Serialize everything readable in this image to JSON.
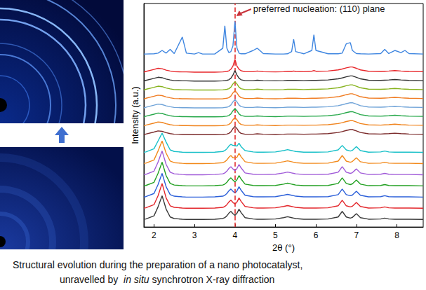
{
  "chart_data": {
    "type": "line",
    "xlabel": "2θ (°)",
    "ylabel": "Intensity (a.u.)",
    "xlim": [
      1.75,
      8.65
    ],
    "xticks": [
      2,
      3,
      4,
      5,
      6,
      7,
      8
    ],
    "ylim": [
      0,
      100
    ],
    "yticks": [],
    "tick_labels": "x",
    "grid": false,
    "annotations": [
      {
        "text": "preferred nucleation: (110) plane",
        "x": 4
      }
    ],
    "x": [
      1.75,
      1.8,
      2.0,
      2.1,
      2.2,
      2.3,
      2.4,
      2.5,
      2.7,
      2.8,
      3.0,
      3.1,
      3.2,
      3.5,
      3.7,
      3.75,
      3.8,
      3.85,
      3.9,
      3.95,
      4.0,
      4.05,
      4.1,
      4.15,
      4.25,
      4.45,
      4.55,
      4.7,
      5.0,
      5.2,
      5.3,
      5.4,
      5.45,
      5.5,
      5.7,
      5.9,
      5.95,
      6.0,
      6.3,
      6.55,
      6.65,
      6.75,
      6.85,
      6.9,
      7.0,
      7.1,
      7.3,
      7.6,
      7.7,
      7.8,
      7.95,
      8.1,
      8.2,
      8.3,
      8.65
    ],
    "series": [
      {
        "color": "#3a3a3a",
        "values": [
          3.5,
          3.6,
          5,
          9,
          14,
          8,
          4.5,
          3.8,
          3.5,
          3.4,
          3.4,
          3.4,
          3.4,
          3.5,
          3.8,
          4.2,
          5,
          6.2,
          7,
          6,
          5.2,
          6.2,
          8,
          6.5,
          4.2,
          3.6,
          3.5,
          3.5,
          3.6,
          4.2,
          4.6,
          4.2,
          4,
          3.8,
          3.5,
          3.5,
          3.5,
          3.5,
          3.6,
          4.5,
          7,
          4.5,
          4,
          4.3,
          6,
          4.2,
          3.5,
          3.6,
          4,
          3.6,
          3.5,
          3.5,
          3.5,
          3.5,
          3.4
        ]
      },
      {
        "color": "#e3262b",
        "values": [
          8.5,
          8.6,
          10,
          14,
          19.5,
          13,
          9.5,
          8.8,
          8.5,
          8.4,
          8.4,
          8.4,
          8.4,
          8.5,
          8.8,
          9.2,
          10,
          11.2,
          12,
          11,
          10.2,
          11.2,
          13,
          11.5,
          9.2,
          8.6,
          8.5,
          8.5,
          8.6,
          9.2,
          9.6,
          9.2,
          9,
          8.8,
          8.5,
          8.5,
          8.5,
          8.5,
          8.6,
          9.5,
          12,
          9.5,
          9,
          9.3,
          11,
          9.2,
          8.5,
          8.6,
          9,
          8.6,
          8.5,
          8.5,
          8.5,
          8.5,
          8.4
        ]
      },
      {
        "color": "#2b5fd9",
        "values": [
          13.5,
          13.6,
          15,
          19,
          24,
          18,
          14.5,
          13.8,
          13.5,
          13.4,
          13.4,
          13.4,
          13.4,
          13.5,
          13.8,
          14.2,
          15,
          16.2,
          17,
          16,
          15.2,
          16.2,
          18,
          16.5,
          14.2,
          13.6,
          13.5,
          13.5,
          13.6,
          14.2,
          14.6,
          14.2,
          14,
          13.8,
          13.5,
          13.5,
          13.5,
          13.5,
          13.6,
          14.5,
          17,
          14.5,
          14,
          14.3,
          16,
          14.2,
          13.5,
          13.6,
          14,
          13.6,
          13.5,
          13.5,
          13.5,
          13.5,
          13.4
        ]
      },
      {
        "color": "#22a022",
        "values": [
          18.5,
          18.6,
          20,
          24,
          29,
          23,
          19.5,
          18.8,
          18.5,
          18.4,
          18.4,
          18.4,
          18.4,
          18.5,
          18.8,
          19.2,
          20,
          21.2,
          22,
          21,
          20.2,
          21.2,
          23,
          21.5,
          19.2,
          18.6,
          18.5,
          18.5,
          18.6,
          19.2,
          19.6,
          19.2,
          19,
          18.8,
          18.5,
          18.5,
          18.5,
          18.5,
          18.6,
          19.5,
          22,
          19.5,
          19,
          19.3,
          21,
          19.2,
          18.5,
          18.6,
          19,
          18.6,
          18.5,
          18.5,
          18.5,
          18.5,
          18.4
        ]
      },
      {
        "color": "#a05ad8",
        "values": [
          23.5,
          23.6,
          25,
          29,
          34,
          28,
          24.5,
          23.8,
          23.5,
          23.4,
          23.4,
          23.4,
          23.4,
          23.5,
          23.8,
          24.2,
          25,
          26.2,
          27,
          26,
          25.2,
          26.2,
          28,
          26.5,
          24.2,
          23.6,
          23.5,
          23.5,
          23.6,
          24.2,
          24.6,
          24.2,
          24,
          23.8,
          23.5,
          23.5,
          23.5,
          23.5,
          23.6,
          24.5,
          27,
          24.5,
          24,
          24.3,
          26,
          24.2,
          23.5,
          23.6,
          24,
          23.6,
          23.5,
          23.5,
          23.5,
          23.5,
          23.4
        ]
      },
      {
        "color": "#f28a1c",
        "values": [
          28.5,
          28.6,
          30,
          34,
          38.5,
          33,
          29.5,
          28.8,
          28.5,
          28.4,
          28.4,
          28.4,
          28.4,
          28.5,
          28.8,
          29.2,
          30,
          31.2,
          32,
          31,
          31,
          31.2,
          33,
          31.5,
          29.2,
          28.6,
          28.5,
          28.5,
          28.6,
          29.2,
          29.6,
          29.2,
          29,
          28.8,
          28.5,
          28.5,
          28.5,
          28.5,
          28.6,
          29.5,
          32,
          29.5,
          29,
          29.3,
          31,
          29.2,
          28.5,
          28.6,
          29,
          28.6,
          28.5,
          28.5,
          28.5,
          28.5,
          28.4
        ]
      },
      {
        "color": "#18c0c8",
        "values": [
          33.5,
          33.6,
          35,
          38.5,
          42,
          38,
          34.5,
          33.8,
          33.5,
          33.4,
          33.4,
          33.4,
          33.4,
          33.5,
          33.8,
          34.2,
          35,
          36.2,
          37,
          36.5,
          36.5,
          36.2,
          37.5,
          36,
          34.2,
          33.6,
          33.5,
          33.5,
          33.6,
          34.2,
          34.6,
          34.2,
          34,
          33.8,
          33.5,
          33.5,
          33.5,
          33.5,
          33.6,
          34.5,
          36.5,
          34.5,
          34,
          34.3,
          36,
          34.2,
          33.5,
          33.6,
          34,
          33.6,
          33.5,
          33.5,
          33.5,
          33.5,
          33.4
        ]
      },
      {
        "color": "#7b2b2b",
        "values": [
          41.3,
          41.6,
          42.5,
          43,
          42.8,
          42.2,
          41.8,
          41.5,
          41.4,
          41.4,
          41.3,
          41.3,
          41.3,
          41.3,
          41.4,
          41.5,
          41.6,
          41.9,
          42.6,
          44,
          45,
          44,
          42.6,
          41.9,
          41.5,
          41.5,
          41.7,
          41.5,
          41.4,
          41.5,
          41.6,
          41.6,
          41.6,
          41.6,
          41.5,
          41.6,
          41.6,
          41.6,
          41.8,
          42.3,
          42.7,
          43.2,
          43.6,
          43.6,
          43,
          42.3,
          41.7,
          41.6,
          41.7,
          41.8,
          42,
          41.8,
          41.7,
          41.6,
          41.5
        ]
      },
      {
        "color": "#f0831c",
        "values": [
          45.3,
          45.6,
          46.5,
          47,
          46.8,
          46.2,
          45.8,
          45.5,
          45.4,
          45.4,
          45.3,
          45.3,
          45.3,
          45.3,
          45.4,
          45.5,
          45.6,
          45.9,
          46.6,
          48,
          49,
          48,
          46.6,
          45.9,
          45.5,
          45.5,
          45.7,
          45.5,
          45.4,
          45.5,
          45.6,
          45.6,
          45.6,
          45.6,
          45.5,
          45.6,
          45.6,
          45.6,
          45.8,
          46.3,
          46.7,
          47.2,
          47.6,
          47.6,
          47,
          46.3,
          45.7,
          45.6,
          45.7,
          45.8,
          46,
          45.8,
          45.7,
          45.6,
          45.5
        ]
      },
      {
        "color": "#27a84a",
        "values": [
          49.3,
          49.6,
          50.5,
          51,
          50.8,
          50.2,
          49.8,
          49.5,
          49.4,
          49.4,
          49.3,
          49.3,
          49.3,
          49.3,
          49.4,
          49.5,
          49.6,
          49.9,
          50.6,
          52,
          53,
          52,
          50.6,
          49.9,
          49.5,
          49.5,
          49.7,
          49.5,
          49.4,
          49.5,
          49.6,
          49.6,
          49.6,
          49.6,
          49.5,
          49.6,
          49.6,
          49.6,
          49.8,
          50.3,
          50.7,
          51.2,
          51.6,
          51.6,
          51,
          50.3,
          49.7,
          49.6,
          49.7,
          49.8,
          50,
          49.8,
          49.7,
          49.6,
          49.5
        ]
      },
      {
        "color": "#6fa3d8",
        "values": [
          53.3,
          53.6,
          54.5,
          55,
          54.8,
          54.2,
          53.8,
          53.5,
          53.4,
          53.4,
          53.3,
          53.3,
          53.3,
          53.3,
          53.4,
          53.5,
          53.6,
          53.9,
          54.6,
          56,
          57,
          56,
          54.6,
          53.9,
          53.5,
          53.5,
          53.7,
          53.5,
          53.4,
          53.5,
          53.6,
          53.6,
          53.6,
          53.6,
          53.5,
          53.6,
          53.6,
          53.6,
          53.8,
          54.3,
          54.7,
          55.2,
          55.6,
          55.6,
          55,
          54.3,
          53.7,
          53.6,
          53.7,
          53.8,
          54,
          53.8,
          53.7,
          53.6,
          53.5
        ]
      },
      {
        "color": "#f07c22",
        "values": [
          57.3,
          57.6,
          58.5,
          59,
          58.8,
          58.2,
          57.8,
          57.5,
          57.4,
          57.4,
          57.3,
          57.3,
          57.3,
          57.3,
          57.4,
          57.5,
          57.6,
          57.9,
          58.6,
          60,
          61,
          60,
          58.6,
          57.9,
          57.5,
          57.5,
          57.7,
          57.5,
          57.4,
          57.5,
          57.6,
          57.6,
          57.6,
          57.6,
          57.5,
          57.6,
          57.6,
          57.6,
          57.8,
          58.3,
          58.7,
          59.2,
          59.6,
          59.6,
          59,
          58.3,
          57.7,
          57.6,
          57.7,
          57.8,
          58,
          57.8,
          57.7,
          57.6,
          57.5
        ]
      },
      {
        "color": "#86b21c",
        "values": [
          61.3,
          61.6,
          62.5,
          63,
          62.8,
          62.2,
          61.8,
          61.5,
          61.4,
          61.4,
          61.3,
          61.3,
          61.3,
          61.3,
          61.4,
          61.5,
          61.6,
          61.9,
          62.6,
          64,
          65,
          64,
          62.6,
          61.9,
          61.5,
          61.5,
          61.7,
          61.5,
          61.4,
          61.5,
          61.6,
          61.6,
          61.6,
          61.6,
          61.5,
          61.6,
          61.6,
          61.6,
          61.8,
          62.3,
          62.7,
          63.2,
          63.6,
          63.6,
          63,
          62.3,
          61.7,
          61.6,
          61.7,
          61.8,
          62,
          61.8,
          61.7,
          61.6,
          61.5
        ]
      },
      {
        "color": "#333333",
        "values": [
          65.3,
          65.6,
          66.5,
          67,
          66.8,
          66.2,
          65.8,
          65.5,
          65.4,
          65.4,
          65.3,
          65.3,
          65.3,
          65.3,
          65.4,
          65.5,
          65.6,
          65.9,
          66.6,
          68,
          70,
          68,
          66.6,
          65.9,
          65.5,
          65.5,
          65.7,
          65.5,
          65.4,
          65.5,
          65.6,
          65.6,
          65.6,
          65.6,
          65.5,
          65.6,
          65.6,
          65.6,
          65.8,
          66.3,
          66.7,
          67.2,
          67.6,
          67.6,
          67,
          66.3,
          65.7,
          65.6,
          65.7,
          65.8,
          66,
          65.8,
          65.7,
          65.6,
          65.5
        ]
      },
      {
        "color": "#e8262a",
        "values": [
          69.3,
          69.6,
          70.5,
          71,
          70.8,
          70.2,
          69.8,
          69.5,
          69.4,
          69.4,
          69.3,
          69.3,
          69.3,
          69.3,
          69.4,
          69.5,
          69.6,
          69.9,
          70.6,
          72,
          75,
          72,
          70.6,
          69.9,
          69.5,
          69.5,
          69.8,
          69.5,
          69.4,
          69.5,
          69.6,
          69.6,
          69.8,
          69.6,
          69.5,
          69.7,
          70,
          69.7,
          69.8,
          70.3,
          70.7,
          71.2,
          71.6,
          71.6,
          71,
          70.3,
          69.7,
          69.6,
          69.7,
          69.8,
          70,
          69.8,
          69.7,
          69.6,
          69.5
        ]
      },
      {
        "color": "#3f86e0",
        "values": [
          77.4,
          77.4,
          77.5,
          77.8,
          79,
          77.8,
          79.5,
          77.6,
          85,
          77.8,
          77.4,
          78,
          77.4,
          77.4,
          80,
          90,
          80,
          78,
          78.5,
          81,
          92,
          80,
          77.8,
          77.5,
          77.5,
          79,
          80,
          77.6,
          77.4,
          77.4,
          77.5,
          78.5,
          84,
          78.5,
          77.5,
          79,
          86,
          79,
          77.5,
          77.5,
          77.8,
          82,
          82.5,
          79,
          77.6,
          77.5,
          77.4,
          77.6,
          79.5,
          77.6,
          79,
          78,
          79,
          77.6,
          77.4
        ]
      }
    ]
  },
  "caption": [
    [
      "Structural evolution during the preparation of a nano photocatalyst,"
    ],
    [
      "unravelled by  ",
      "in situ",
      " synchrotron X-ray diffraction"
    ]
  ]
}
